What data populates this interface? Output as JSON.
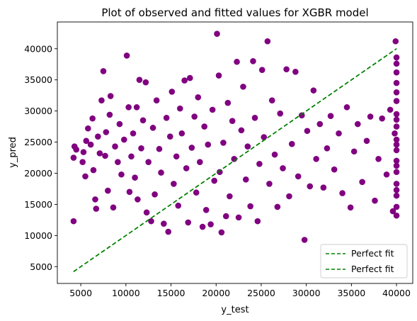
{
  "chart_data": {
    "type": "scatter",
    "title": "Plot of observed and fitted values for XGBR model",
    "xlabel": "y_test",
    "ylabel": "y_pred",
    "xlim": [
      2400,
      41800
    ],
    "ylim": [
      2300,
      44300
    ],
    "xticks": [
      5000,
      10000,
      15000,
      20000,
      25000,
      30000,
      35000,
      40000
    ],
    "yticks": [
      5000,
      10000,
      15000,
      20000,
      25000,
      30000,
      35000,
      40000
    ],
    "grid": false,
    "legend_position": "lower-right",
    "colors": {
      "points": "#800080",
      "fit_line": "#008000"
    },
    "series": [
      {
        "kind": "points",
        "points": [
          [
            4200,
            12300
          ],
          [
            4200,
            22500
          ],
          [
            4300,
            24300
          ],
          [
            4500,
            23800
          ],
          [
            5200,
            21800
          ],
          [
            5300,
            23400
          ],
          [
            5500,
            19500
          ],
          [
            5600,
            25200
          ],
          [
            5800,
            27200
          ],
          [
            6100,
            24600
          ],
          [
            6300,
            28800
          ],
          [
            6400,
            20500
          ],
          [
            6600,
            15800
          ],
          [
            6700,
            14300
          ],
          [
            6900,
            25900
          ],
          [
            7100,
            23200
          ],
          [
            7300,
            31700
          ],
          [
            7500,
            36400
          ],
          [
            7700,
            22800
          ],
          [
            7800,
            26600
          ],
          [
            8000,
            17200
          ],
          [
            8200,
            29400
          ],
          [
            8300,
            32400
          ],
          [
            8600,
            14500
          ],
          [
            8800,
            24300
          ],
          [
            9100,
            21800
          ],
          [
            9300,
            27900
          ],
          [
            9500,
            19800
          ],
          [
            9800,
            25400
          ],
          [
            10100,
            38900
          ],
          [
            10300,
            30600
          ],
          [
            10400,
            17000
          ],
          [
            10600,
            22700
          ],
          [
            10800,
            26400
          ],
          [
            11000,
            19300
          ],
          [
            11200,
            30600
          ],
          [
            11300,
            15800
          ],
          [
            11500,
            35000
          ],
          [
            11700,
            24000
          ],
          [
            11900,
            28500
          ],
          [
            12200,
            34600
          ],
          [
            12300,
            13700
          ],
          [
            12500,
            21800
          ],
          [
            12800,
            12300
          ],
          [
            13000,
            27300
          ],
          [
            13200,
            16600
          ],
          [
            13400,
            31700
          ],
          [
            13700,
            23900
          ],
          [
            13900,
            20100
          ],
          [
            14200,
            11900
          ],
          [
            14500,
            28900
          ],
          [
            14700,
            10600
          ],
          [
            14900,
            25900
          ],
          [
            15100,
            33100
          ],
          [
            15300,
            18300
          ],
          [
            15600,
            22700
          ],
          [
            15800,
            14800
          ],
          [
            16000,
            30400
          ],
          [
            16200,
            26400
          ],
          [
            16500,
            34900
          ],
          [
            16700,
            20800
          ],
          [
            16900,
            12100
          ],
          [
            17100,
            35300
          ],
          [
            17300,
            24100
          ],
          [
            17600,
            29100
          ],
          [
            17800,
            16900
          ],
          [
            18000,
            32200
          ],
          [
            18200,
            21800
          ],
          [
            18500,
            11400
          ],
          [
            18700,
            27500
          ],
          [
            18900,
            14100
          ],
          [
            19100,
            24600
          ],
          [
            19400,
            11800
          ],
          [
            19600,
            30200
          ],
          [
            19800,
            18800
          ],
          [
            20100,
            42400
          ],
          [
            20300,
            35700
          ],
          [
            20400,
            20200
          ],
          [
            20600,
            10500
          ],
          [
            20800,
            24900
          ],
          [
            21100,
            13100
          ],
          [
            21300,
            31300
          ],
          [
            21500,
            16300
          ],
          [
            21800,
            28400
          ],
          [
            22000,
            22300
          ],
          [
            22300,
            37900
          ],
          [
            22500,
            12900
          ],
          [
            22800,
            26900
          ],
          [
            23000,
            33900
          ],
          [
            23300,
            19000
          ],
          [
            23500,
            24300
          ],
          [
            23800,
            14700
          ],
          [
            24100,
            38000
          ],
          [
            24300,
            28900
          ],
          [
            24600,
            12300
          ],
          [
            24800,
            21500
          ],
          [
            25100,
            36600
          ],
          [
            25300,
            25800
          ],
          [
            25700,
            41200
          ],
          [
            25900,
            18300
          ],
          [
            26200,
            31700
          ],
          [
            26500,
            23000
          ],
          [
            26800,
            14600
          ],
          [
            27100,
            29600
          ],
          [
            27400,
            20800
          ],
          [
            27800,
            36700
          ],
          [
            28100,
            16300
          ],
          [
            28400,
            24700
          ],
          [
            28800,
            36300
          ],
          [
            29100,
            19500
          ],
          [
            29500,
            29300
          ],
          [
            29800,
            9300
          ],
          [
            30100,
            26800
          ],
          [
            30400,
            17900
          ],
          [
            30800,
            33300
          ],
          [
            31100,
            22300
          ],
          [
            31500,
            27900
          ],
          [
            31900,
            17700
          ],
          [
            32300,
            24000
          ],
          [
            32700,
            29200
          ],
          [
            33100,
            20600
          ],
          [
            33600,
            26400
          ],
          [
            34000,
            16800
          ],
          [
            34500,
            30600
          ],
          [
            34900,
            14500
          ],
          [
            35300,
            23500
          ],
          [
            35700,
            27900
          ],
          [
            36200,
            18600
          ],
          [
            36700,
            25200
          ],
          [
            37100,
            29100
          ],
          [
            37600,
            15600
          ],
          [
            38000,
            22300
          ],
          [
            38400,
            28800
          ],
          [
            38900,
            19800
          ],
          [
            39300,
            30200
          ],
          [
            39600,
            13900
          ],
          [
            39800,
            26400
          ],
          [
            39900,
            41200
          ],
          [
            40000,
            38600
          ],
          [
            40000,
            37600
          ],
          [
            40000,
            34500
          ],
          [
            40000,
            31600
          ],
          [
            40000,
            29500
          ],
          [
            40000,
            27500
          ],
          [
            40000,
            25400
          ],
          [
            40000,
            23700
          ],
          [
            40000,
            22000
          ],
          [
            40000,
            20200
          ],
          [
            40000,
            18300
          ],
          [
            40000,
            16400
          ],
          [
            40000,
            14600
          ],
          [
            40000,
            13200
          ],
          [
            40000,
            36200
          ],
          [
            40000,
            33000
          ],
          [
            40000,
            28600
          ],
          [
            40000,
            24600
          ],
          [
            40000,
            21200
          ],
          [
            40000,
            17300
          ]
        ]
      },
      {
        "kind": "line",
        "name": "Perfect fit",
        "style": "dashed",
        "points": [
          [
            4200,
            4200
          ],
          [
            40000,
            40000
          ]
        ]
      },
      {
        "kind": "line",
        "name": "Perfect fit",
        "style": "dashed",
        "points": [
          [
            4200,
            4200
          ],
          [
            40000,
            40000
          ]
        ]
      }
    ]
  }
}
